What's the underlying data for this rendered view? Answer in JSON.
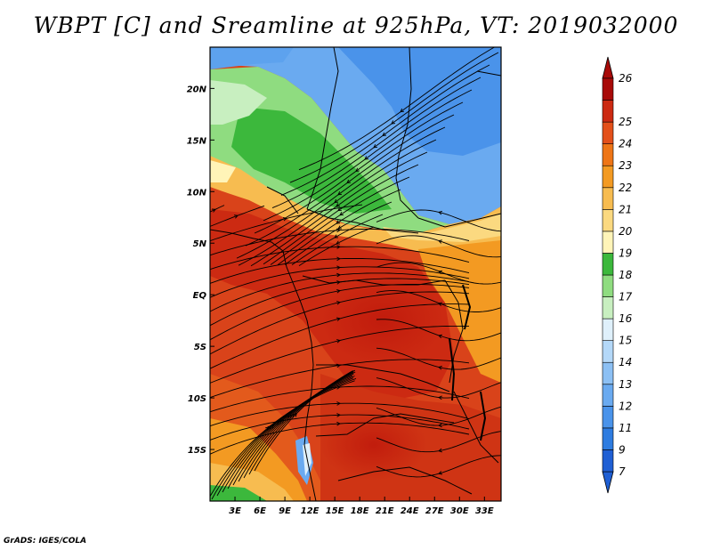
{
  "title": "WBPT [C] and Sreamline at 925hPa, VT: 2019032000",
  "credit": "GrADS: IGES/COLA",
  "map": {
    "lon_range": [
      0,
      35
    ],
    "lat_range": [
      -20,
      24
    ],
    "lon_ticks": [
      {
        "value": 3,
        "label": "3E"
      },
      {
        "value": 6,
        "label": "6E"
      },
      {
        "value": 9,
        "label": "9E"
      },
      {
        "value": 12,
        "label": "12E"
      },
      {
        "value": 15,
        "label": "15E"
      },
      {
        "value": 18,
        "label": "18E"
      },
      {
        "value": 21,
        "label": "21E"
      },
      {
        "value": 24,
        "label": "24E"
      },
      {
        "value": 27,
        "label": "27E"
      },
      {
        "value": 30,
        "label": "30E"
      },
      {
        "value": 33,
        "label": "33E"
      }
    ],
    "lat_ticks": [
      {
        "value": 20,
        "label": "20N"
      },
      {
        "value": 15,
        "label": "15N"
      },
      {
        "value": 10,
        "label": "10N"
      },
      {
        "value": 5,
        "label": "5N"
      },
      {
        "value": 0,
        "label": "EQ"
      },
      {
        "value": -5,
        "label": "5S"
      },
      {
        "value": -10,
        "label": "10S"
      },
      {
        "value": -15,
        "label": "15S"
      }
    ]
  },
  "colorbar": {
    "levels": [
      {
        "label": "7",
        "color": "#1f5fd4"
      },
      {
        "label": "9",
        "color": "#2e7ce0"
      },
      {
        "label": "11",
        "color": "#4a93ea"
      },
      {
        "label": "12",
        "color": "#6aaaf0"
      },
      {
        "label": "13",
        "color": "#8cc0f4"
      },
      {
        "label": "14",
        "color": "#b4d8f8"
      },
      {
        "label": "15",
        "color": "#dff0fb"
      },
      {
        "label": "16",
        "color": "#c8efc0"
      },
      {
        "label": "17",
        "color": "#8fdc80"
      },
      {
        "label": "18",
        "color": "#3cb83c"
      },
      {
        "label": "19",
        "color": "#fff4b8"
      },
      {
        "label": "20",
        "color": "#fbd980"
      },
      {
        "label": "21",
        "color": "#f7bc50"
      },
      {
        "label": "22",
        "color": "#f39a22"
      },
      {
        "label": "23",
        "color": "#ee7516"
      },
      {
        "label": "24",
        "color": "#e3501a"
      },
      {
        "label": "25",
        "color": "#cc2a12"
      },
      {
        "label": "26",
        "color": "#a80a08"
      }
    ],
    "top_arrow_color": "#a80a08",
    "bottom_arrow_color": "#1f5fd4"
  }
}
